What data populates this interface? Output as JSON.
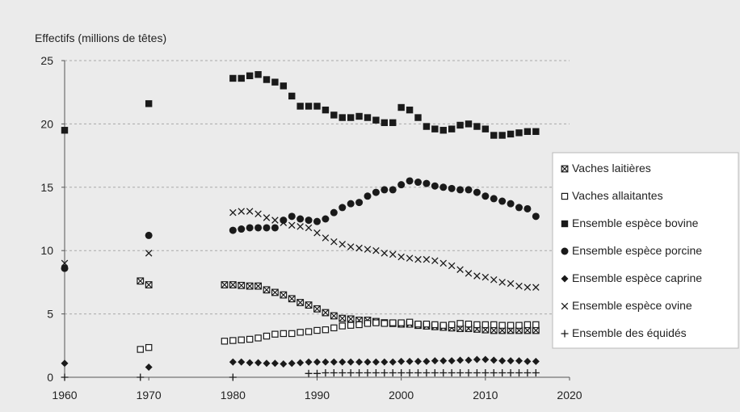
{
  "chart_data": {
    "type": "scatter",
    "ylabel": "Effectifs (millions de têtes)",
    "xlim": [
      1960,
      2020
    ],
    "ylim": [
      0,
      25
    ],
    "xticks": [
      "1960",
      "1970",
      "1980",
      "1990",
      "2000",
      "2010",
      "2020"
    ],
    "yticks": [
      "0",
      "5",
      "10",
      "15",
      "20",
      "25"
    ],
    "grid": "horizontal dashed",
    "legend_position": "right",
    "series": [
      {
        "name": "Vaches laitières",
        "marker": "boxed-x",
        "points": [
          [
            1969,
            7.6
          ],
          [
            1970,
            7.3
          ],
          [
            1979,
            7.3
          ],
          [
            1980,
            7.3
          ],
          [
            1981,
            7.25
          ],
          [
            1982,
            7.2
          ],
          [
            1983,
            7.2
          ],
          [
            1984,
            6.9
          ],
          [
            1985,
            6.7
          ],
          [
            1986,
            6.5
          ],
          [
            1987,
            6.2
          ],
          [
            1988,
            5.9
          ],
          [
            1989,
            5.7
          ],
          [
            1990,
            5.4
          ],
          [
            1991,
            5.1
          ],
          [
            1992,
            4.85
          ],
          [
            1993,
            4.65
          ],
          [
            1994,
            4.6
          ],
          [
            1995,
            4.5
          ],
          [
            1996,
            4.5
          ],
          [
            1997,
            4.4
          ],
          [
            1998,
            4.3
          ],
          [
            1999,
            4.25
          ],
          [
            2000,
            4.2
          ],
          [
            2001,
            4.2
          ],
          [
            2002,
            4.1
          ],
          [
            2003,
            4.05
          ],
          [
            2004,
            4.0
          ],
          [
            2005,
            3.95
          ],
          [
            2006,
            3.9
          ],
          [
            2007,
            3.85
          ],
          [
            2008,
            3.85
          ],
          [
            2009,
            3.8
          ],
          [
            2010,
            3.75
          ],
          [
            2011,
            3.7
          ],
          [
            2012,
            3.7
          ],
          [
            2013,
            3.7
          ],
          [
            2014,
            3.7
          ],
          [
            2015,
            3.7
          ],
          [
            2016,
            3.7
          ]
        ]
      },
      {
        "name": "Vaches allaitantes",
        "marker": "open-square",
        "points": [
          [
            1969,
            2.2
          ],
          [
            1970,
            2.35
          ],
          [
            1979,
            2.85
          ],
          [
            1980,
            2.9
          ],
          [
            1981,
            2.95
          ],
          [
            1982,
            3.0
          ],
          [
            1983,
            3.1
          ],
          [
            1984,
            3.25
          ],
          [
            1985,
            3.4
          ],
          [
            1986,
            3.45
          ],
          [
            1987,
            3.45
          ],
          [
            1988,
            3.55
          ],
          [
            1989,
            3.6
          ],
          [
            1990,
            3.7
          ],
          [
            1991,
            3.75
          ],
          [
            1992,
            3.9
          ],
          [
            1993,
            4.05
          ],
          [
            1994,
            4.1
          ],
          [
            1995,
            4.15
          ],
          [
            1996,
            4.25
          ],
          [
            1997,
            4.3
          ],
          [
            1998,
            4.25
          ],
          [
            1999,
            4.3
          ],
          [
            2000,
            4.3
          ],
          [
            2001,
            4.35
          ],
          [
            2002,
            4.2
          ],
          [
            2003,
            4.2
          ],
          [
            2004,
            4.15
          ],
          [
            2005,
            4.1
          ],
          [
            2006,
            4.15
          ],
          [
            2007,
            4.25
          ],
          [
            2008,
            4.2
          ],
          [
            2009,
            4.15
          ],
          [
            2010,
            4.15
          ],
          [
            2011,
            4.15
          ],
          [
            2012,
            4.1
          ],
          [
            2013,
            4.1
          ],
          [
            2014,
            4.1
          ],
          [
            2015,
            4.15
          ],
          [
            2016,
            4.15
          ]
        ]
      },
      {
        "name": "Ensemble espèce bovine",
        "marker": "filled-square",
        "points": [
          [
            1960,
            19.5
          ],
          [
            1970,
            21.6
          ],
          [
            1980,
            23.6
          ],
          [
            1981,
            23.6
          ],
          [
            1982,
            23.8
          ],
          [
            1983,
            23.9
          ],
          [
            1984,
            23.5
          ],
          [
            1985,
            23.3
          ],
          [
            1986,
            23.0
          ],
          [
            1987,
            22.2
          ],
          [
            1988,
            21.4
          ],
          [
            1989,
            21.4
          ],
          [
            1990,
            21.4
          ],
          [
            1991,
            21.1
          ],
          [
            1992,
            20.7
          ],
          [
            1993,
            20.5
          ],
          [
            1994,
            20.5
          ],
          [
            1995,
            20.6
          ],
          [
            1996,
            20.5
          ],
          [
            1997,
            20.3
          ],
          [
            1998,
            20.1
          ],
          [
            1999,
            20.1
          ],
          [
            2000,
            21.3
          ],
          [
            2001,
            21.1
          ],
          [
            2002,
            20.5
          ],
          [
            2003,
            19.8
          ],
          [
            2004,
            19.6
          ],
          [
            2005,
            19.5
          ],
          [
            2006,
            19.6
          ],
          [
            2007,
            19.9
          ],
          [
            2008,
            20.0
          ],
          [
            2009,
            19.8
          ],
          [
            2010,
            19.6
          ],
          [
            2011,
            19.1
          ],
          [
            2012,
            19.1
          ],
          [
            2013,
            19.2
          ],
          [
            2014,
            19.3
          ],
          [
            2015,
            19.4
          ],
          [
            2016,
            19.4
          ]
        ]
      },
      {
        "name": "Ensemble espèce porcine",
        "marker": "filled-circle",
        "points": [
          [
            1960,
            8.6
          ],
          [
            1970,
            11.2
          ],
          [
            1980,
            11.6
          ],
          [
            1981,
            11.7
          ],
          [
            1982,
            11.8
          ],
          [
            1983,
            11.8
          ],
          [
            1984,
            11.8
          ],
          [
            1985,
            11.8
          ],
          [
            1986,
            12.4
          ],
          [
            1987,
            12.7
          ],
          [
            1988,
            12.5
          ],
          [
            1989,
            12.4
          ],
          [
            1990,
            12.3
          ],
          [
            1991,
            12.5
          ],
          [
            1992,
            13.0
          ],
          [
            1993,
            13.4
          ],
          [
            1994,
            13.7
          ],
          [
            1995,
            13.8
          ],
          [
            1996,
            14.3
          ],
          [
            1997,
            14.6
          ],
          [
            1998,
            14.8
          ],
          [
            1999,
            14.8
          ],
          [
            2000,
            15.2
          ],
          [
            2001,
            15.5
          ],
          [
            2002,
            15.4
          ],
          [
            2003,
            15.3
          ],
          [
            2004,
            15.1
          ],
          [
            2005,
            15.0
          ],
          [
            2006,
            14.9
          ],
          [
            2007,
            14.8
          ],
          [
            2008,
            14.8
          ],
          [
            2009,
            14.6
          ],
          [
            2010,
            14.3
          ],
          [
            2011,
            14.1
          ],
          [
            2012,
            13.9
          ],
          [
            2013,
            13.7
          ],
          [
            2014,
            13.4
          ],
          [
            2015,
            13.3
          ],
          [
            2016,
            12.7
          ]
        ]
      },
      {
        "name": "Ensemble espèce caprine",
        "marker": "filled-diamond",
        "points": [
          [
            1960,
            1.1
          ],
          [
            1970,
            0.8
          ],
          [
            1980,
            1.2
          ],
          [
            1981,
            1.2
          ],
          [
            1982,
            1.15
          ],
          [
            1983,
            1.15
          ],
          [
            1984,
            1.1
          ],
          [
            1985,
            1.1
          ],
          [
            1986,
            1.05
          ],
          [
            1987,
            1.1
          ],
          [
            1988,
            1.15
          ],
          [
            1989,
            1.2
          ],
          [
            1990,
            1.2
          ],
          [
            1991,
            1.2
          ],
          [
            1992,
            1.2
          ],
          [
            1993,
            1.2
          ],
          [
            1994,
            1.2
          ],
          [
            1995,
            1.2
          ],
          [
            1996,
            1.2
          ],
          [
            1997,
            1.2
          ],
          [
            1998,
            1.2
          ],
          [
            1999,
            1.2
          ],
          [
            2000,
            1.25
          ],
          [
            2001,
            1.25
          ],
          [
            2002,
            1.25
          ],
          [
            2003,
            1.25
          ],
          [
            2004,
            1.3
          ],
          [
            2005,
            1.3
          ],
          [
            2006,
            1.3
          ],
          [
            2007,
            1.35
          ],
          [
            2008,
            1.35
          ],
          [
            2009,
            1.4
          ],
          [
            2010,
            1.4
          ],
          [
            2011,
            1.35
          ],
          [
            2012,
            1.3
          ],
          [
            2013,
            1.3
          ],
          [
            2014,
            1.3
          ],
          [
            2015,
            1.25
          ],
          [
            2016,
            1.25
          ]
        ]
      },
      {
        "name": "Ensemble espèce ovine",
        "marker": "x",
        "points": [
          [
            1960,
            9.0
          ],
          [
            1970,
            9.8
          ],
          [
            1980,
            13.0
          ],
          [
            1981,
            13.1
          ],
          [
            1982,
            13.1
          ],
          [
            1983,
            12.9
          ],
          [
            1984,
            12.6
          ],
          [
            1985,
            12.4
          ],
          [
            1986,
            12.2
          ],
          [
            1987,
            12.0
          ],
          [
            1988,
            11.9
          ],
          [
            1989,
            11.8
          ],
          [
            1990,
            11.4
          ],
          [
            1991,
            11.0
          ],
          [
            1992,
            10.7
          ],
          [
            1993,
            10.5
          ],
          [
            1994,
            10.3
          ],
          [
            1995,
            10.2
          ],
          [
            1996,
            10.1
          ],
          [
            1997,
            10.0
          ],
          [
            1998,
            9.8
          ],
          [
            1999,
            9.7
          ],
          [
            2000,
            9.5
          ],
          [
            2001,
            9.4
          ],
          [
            2002,
            9.3
          ],
          [
            2003,
            9.3
          ],
          [
            2004,
            9.2
          ],
          [
            2005,
            9.0
          ],
          [
            2006,
            8.8
          ],
          [
            2007,
            8.5
          ],
          [
            2008,
            8.2
          ],
          [
            2009,
            8.0
          ],
          [
            2010,
            7.9
          ],
          [
            2011,
            7.7
          ],
          [
            2012,
            7.5
          ],
          [
            2013,
            7.4
          ],
          [
            2014,
            7.2
          ],
          [
            2015,
            7.1
          ],
          [
            2016,
            7.1
          ]
        ]
      },
      {
        "name": "Ensemble des équidés",
        "marker": "plus",
        "points": [
          [
            1960,
            0.0
          ],
          [
            1969,
            0.0
          ],
          [
            1980,
            0.0
          ],
          [
            1989,
            0.3
          ],
          [
            1990,
            0.3
          ],
          [
            1991,
            0.35
          ],
          [
            1992,
            0.35
          ],
          [
            1993,
            0.35
          ],
          [
            1994,
            0.35
          ],
          [
            1995,
            0.35
          ],
          [
            1996,
            0.35
          ],
          [
            1997,
            0.35
          ],
          [
            1998,
            0.35
          ],
          [
            1999,
            0.35
          ],
          [
            2000,
            0.35
          ],
          [
            2001,
            0.35
          ],
          [
            2002,
            0.35
          ],
          [
            2003,
            0.35
          ],
          [
            2004,
            0.35
          ],
          [
            2005,
            0.35
          ],
          [
            2006,
            0.35
          ],
          [
            2007,
            0.35
          ],
          [
            2008,
            0.35
          ],
          [
            2009,
            0.35
          ],
          [
            2010,
            0.35
          ],
          [
            2011,
            0.35
          ],
          [
            2012,
            0.35
          ],
          [
            2013,
            0.35
          ],
          [
            2014,
            0.35
          ],
          [
            2015,
            0.35
          ],
          [
            2016,
            0.35
          ]
        ]
      }
    ]
  },
  "colors": {
    "background": "#ebebeb",
    "legend_background": "#ffffff",
    "marker": "#1a1a1a",
    "grid": "#a9a9a9"
  }
}
